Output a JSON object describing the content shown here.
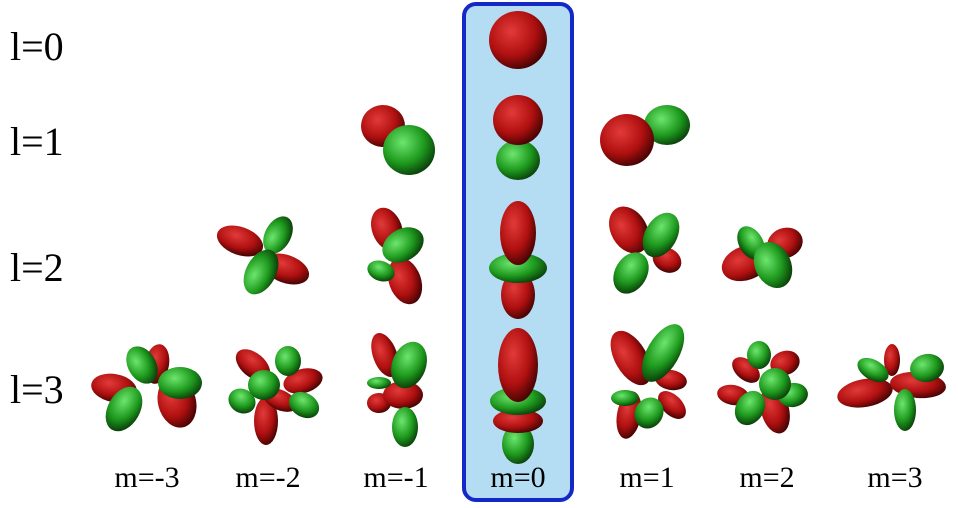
{
  "row_labels": [
    "l=0",
    "l=1",
    "l=2",
    "l=3"
  ],
  "column_labels": [
    "m=-3",
    "m=-2",
    "m=-1",
    "m=0",
    "m=1",
    "m=2",
    "m=3"
  ],
  "highlighted_column": "m=0",
  "colors": {
    "positive_lobe": "#b01010",
    "negative_lobe": "#1e9a1e",
    "highlight_fill": "#b4dcf2",
    "highlight_border": "#1428c8"
  },
  "orbitals": [
    {
      "l": 0,
      "m": 0
    },
    {
      "l": 1,
      "m": -1
    },
    {
      "l": 1,
      "m": 0
    },
    {
      "l": 1,
      "m": 1
    },
    {
      "l": 2,
      "m": -2
    },
    {
      "l": 2,
      "m": -1
    },
    {
      "l": 2,
      "m": 0
    },
    {
      "l": 2,
      "m": 1
    },
    {
      "l": 2,
      "m": 2
    },
    {
      "l": 3,
      "m": -3
    },
    {
      "l": 3,
      "m": -2
    },
    {
      "l": 3,
      "m": -1
    },
    {
      "l": 3,
      "m": 0
    },
    {
      "l": 3,
      "m": 1
    },
    {
      "l": 3,
      "m": 2
    },
    {
      "l": 3,
      "m": 3
    }
  ]
}
